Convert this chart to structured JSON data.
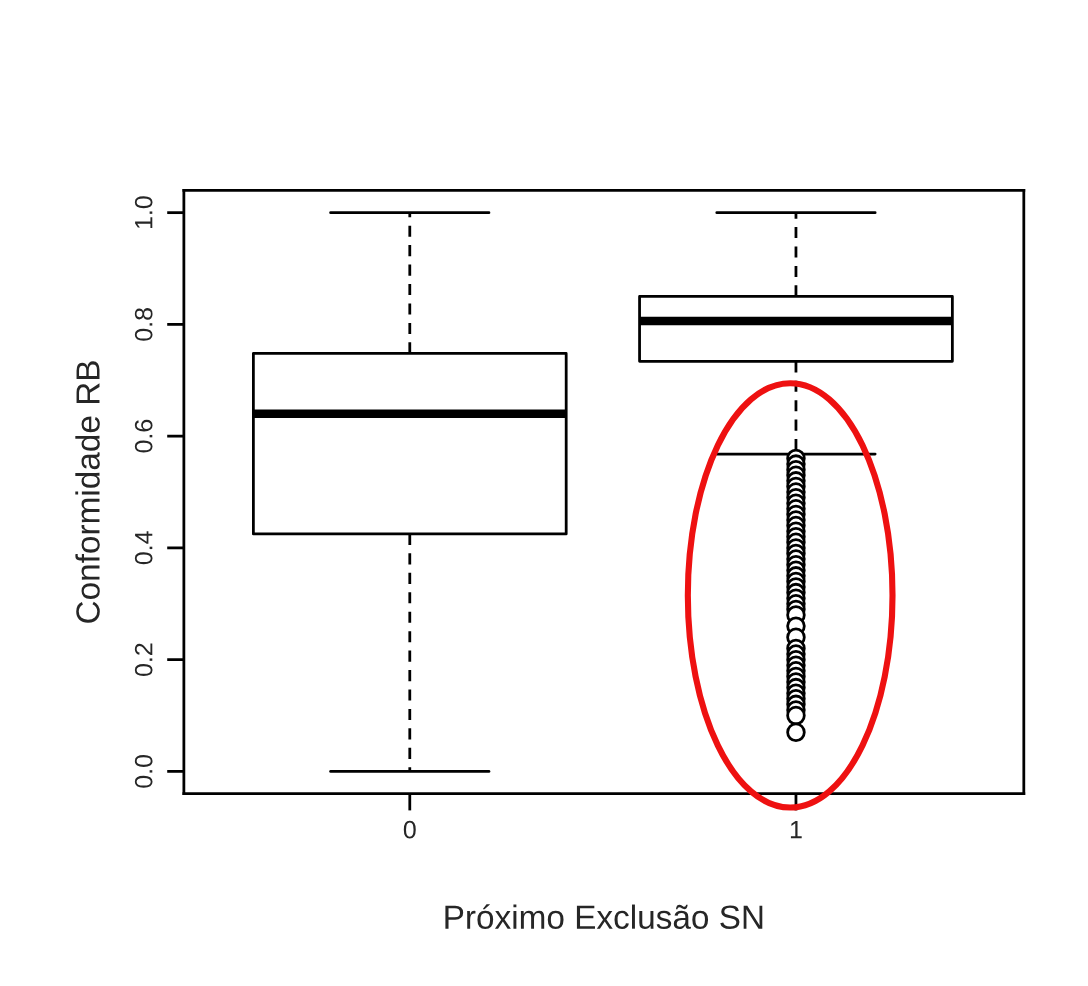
{
  "chart_data": {
    "type": "box",
    "xlabel": "Próximo Exclusão SN",
    "ylabel": "Conformidade RB",
    "categories": [
      "0",
      "1"
    ],
    "boxes": [
      {
        "low": 0.0,
        "q1": 0.425,
        "median": 0.64,
        "q3": 0.748,
        "high": 1.0
      },
      {
        "low": 0.568,
        "q1": 0.734,
        "median": 0.806,
        "q3": 0.85,
        "high": 1.0,
        "outliers": [
          0.56,
          0.55,
          0.54,
          0.53,
          0.52,
          0.51,
          0.5,
          0.49,
          0.48,
          0.47,
          0.46,
          0.45,
          0.44,
          0.43,
          0.42,
          0.41,
          0.4,
          0.39,
          0.38,
          0.37,
          0.36,
          0.35,
          0.34,
          0.33,
          0.32,
          0.31,
          0.3,
          0.29,
          0.28,
          0.26,
          0.24,
          0.22,
          0.21,
          0.2,
          0.19,
          0.18,
          0.17,
          0.16,
          0.15,
          0.14,
          0.13,
          0.12,
          0.11,
          0.1,
          0.07
        ]
      }
    ],
    "ylim": [
      -0.04,
      1.04
    ],
    "yticks": [
      {
        "value": 0,
        "label": "0.0"
      },
      {
        "value": 0.2,
        "label": "0.2"
      },
      {
        "value": 0.4,
        "label": "0.4"
      },
      {
        "value": 0.6,
        "label": "0.6"
      },
      {
        "value": 0.8,
        "label": "0.8"
      },
      {
        "value": 1,
        "label": "1.0"
      }
    ],
    "grid": false
  }
}
